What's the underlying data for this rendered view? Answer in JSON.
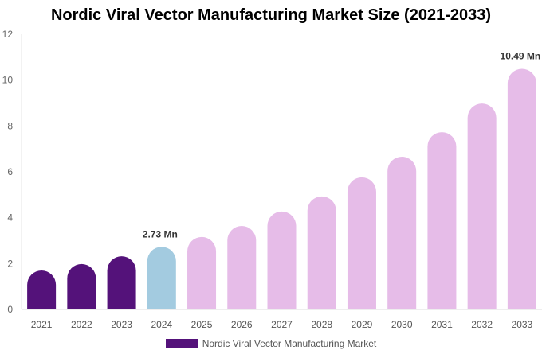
{
  "chart_data": {
    "type": "bar",
    "title": "Nordic Viral Vector Manufacturing Market Size (2021-2033)",
    "categories": [
      "2021",
      "2022",
      "2023",
      "2024",
      "2025",
      "2026",
      "2027",
      "2028",
      "2029",
      "2030",
      "2031",
      "2032",
      "2033"
    ],
    "series": [
      {
        "name": "Nordic Viral Vector Manufacturing Market",
        "values": [
          1.7,
          1.98,
          2.32,
          2.73,
          3.16,
          3.64,
          4.27,
          4.93,
          5.76,
          6.66,
          7.73,
          8.98,
          10.49
        ]
      }
    ],
    "data_labels": {
      "2024": "2.73 Mn",
      "2033": "10.49 Mn"
    },
    "yticks": [
      "0",
      "2",
      "4",
      "6",
      "8",
      "10",
      "12"
    ],
    "ylim": [
      0,
      12
    ],
    "grid": false,
    "legend": "bottom",
    "colors": {
      "historical": "#54127a",
      "base_year": "#a3cbe0",
      "forecast": "#e6bce8"
    }
  }
}
